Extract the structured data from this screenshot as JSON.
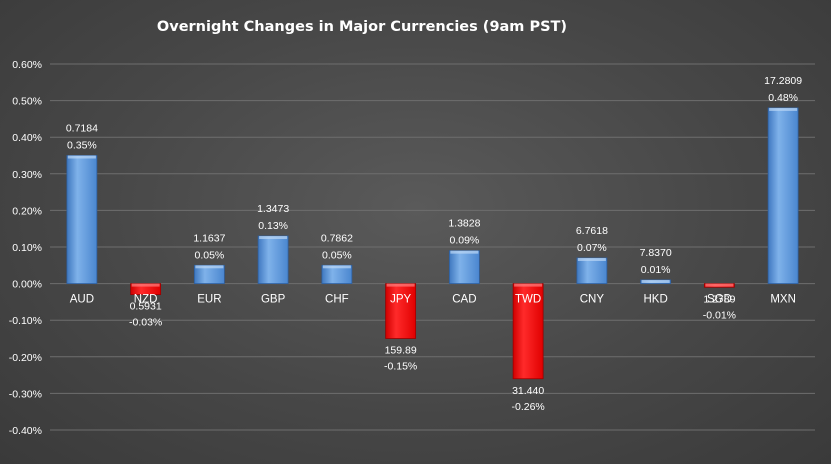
{
  "chart_data": {
    "type": "bar",
    "title": "Overnight Changes in Major Currencies (9am PST)",
    "xlabel": "",
    "ylabel": "",
    "ylim": [
      -0.4,
      0.6
    ],
    "yticks": [
      "0.60%",
      "0.50%",
      "0.40%",
      "0.30%",
      "0.20%",
      "0.10%",
      "0.00%",
      "-0.10%",
      "-0.20%",
      "-0.30%",
      "-0.40%"
    ],
    "ytick_values": [
      0.6,
      0.5,
      0.4,
      0.3,
      0.2,
      0.1,
      0.0,
      -0.1,
      -0.2,
      -0.3,
      -0.4
    ],
    "grid": true,
    "legend": "none",
    "positive_color": "#5b9bd5",
    "negative_color": "#ff0000",
    "categories": [
      "AUD",
      "NZD",
      "EUR",
      "GBP",
      "CHF",
      "JPY",
      "CAD",
      "TWD",
      "CNY",
      "HKD",
      "SGD",
      "MXN"
    ],
    "values": [
      0.35,
      -0.03,
      0.05,
      0.13,
      0.05,
      -0.15,
      0.09,
      -0.26,
      0.07,
      0.01,
      -0.01,
      0.48
    ],
    "rates": [
      "0.7184",
      "0.5931",
      "1.1637",
      "1.3473",
      "0.7862",
      "159.89",
      "1.3828",
      "31.440",
      "6.7618",
      "7.8370",
      "1.2789",
      "17.2809"
    ],
    "percent_labels": [
      "0.35%",
      "-0.03%",
      "0.05%",
      "0.13%",
      "0.05%",
      "-0.15%",
      "0.09%",
      "-0.26%",
      "0.07%",
      "0.01%",
      "-0.01%",
      "0.48%"
    ]
  }
}
